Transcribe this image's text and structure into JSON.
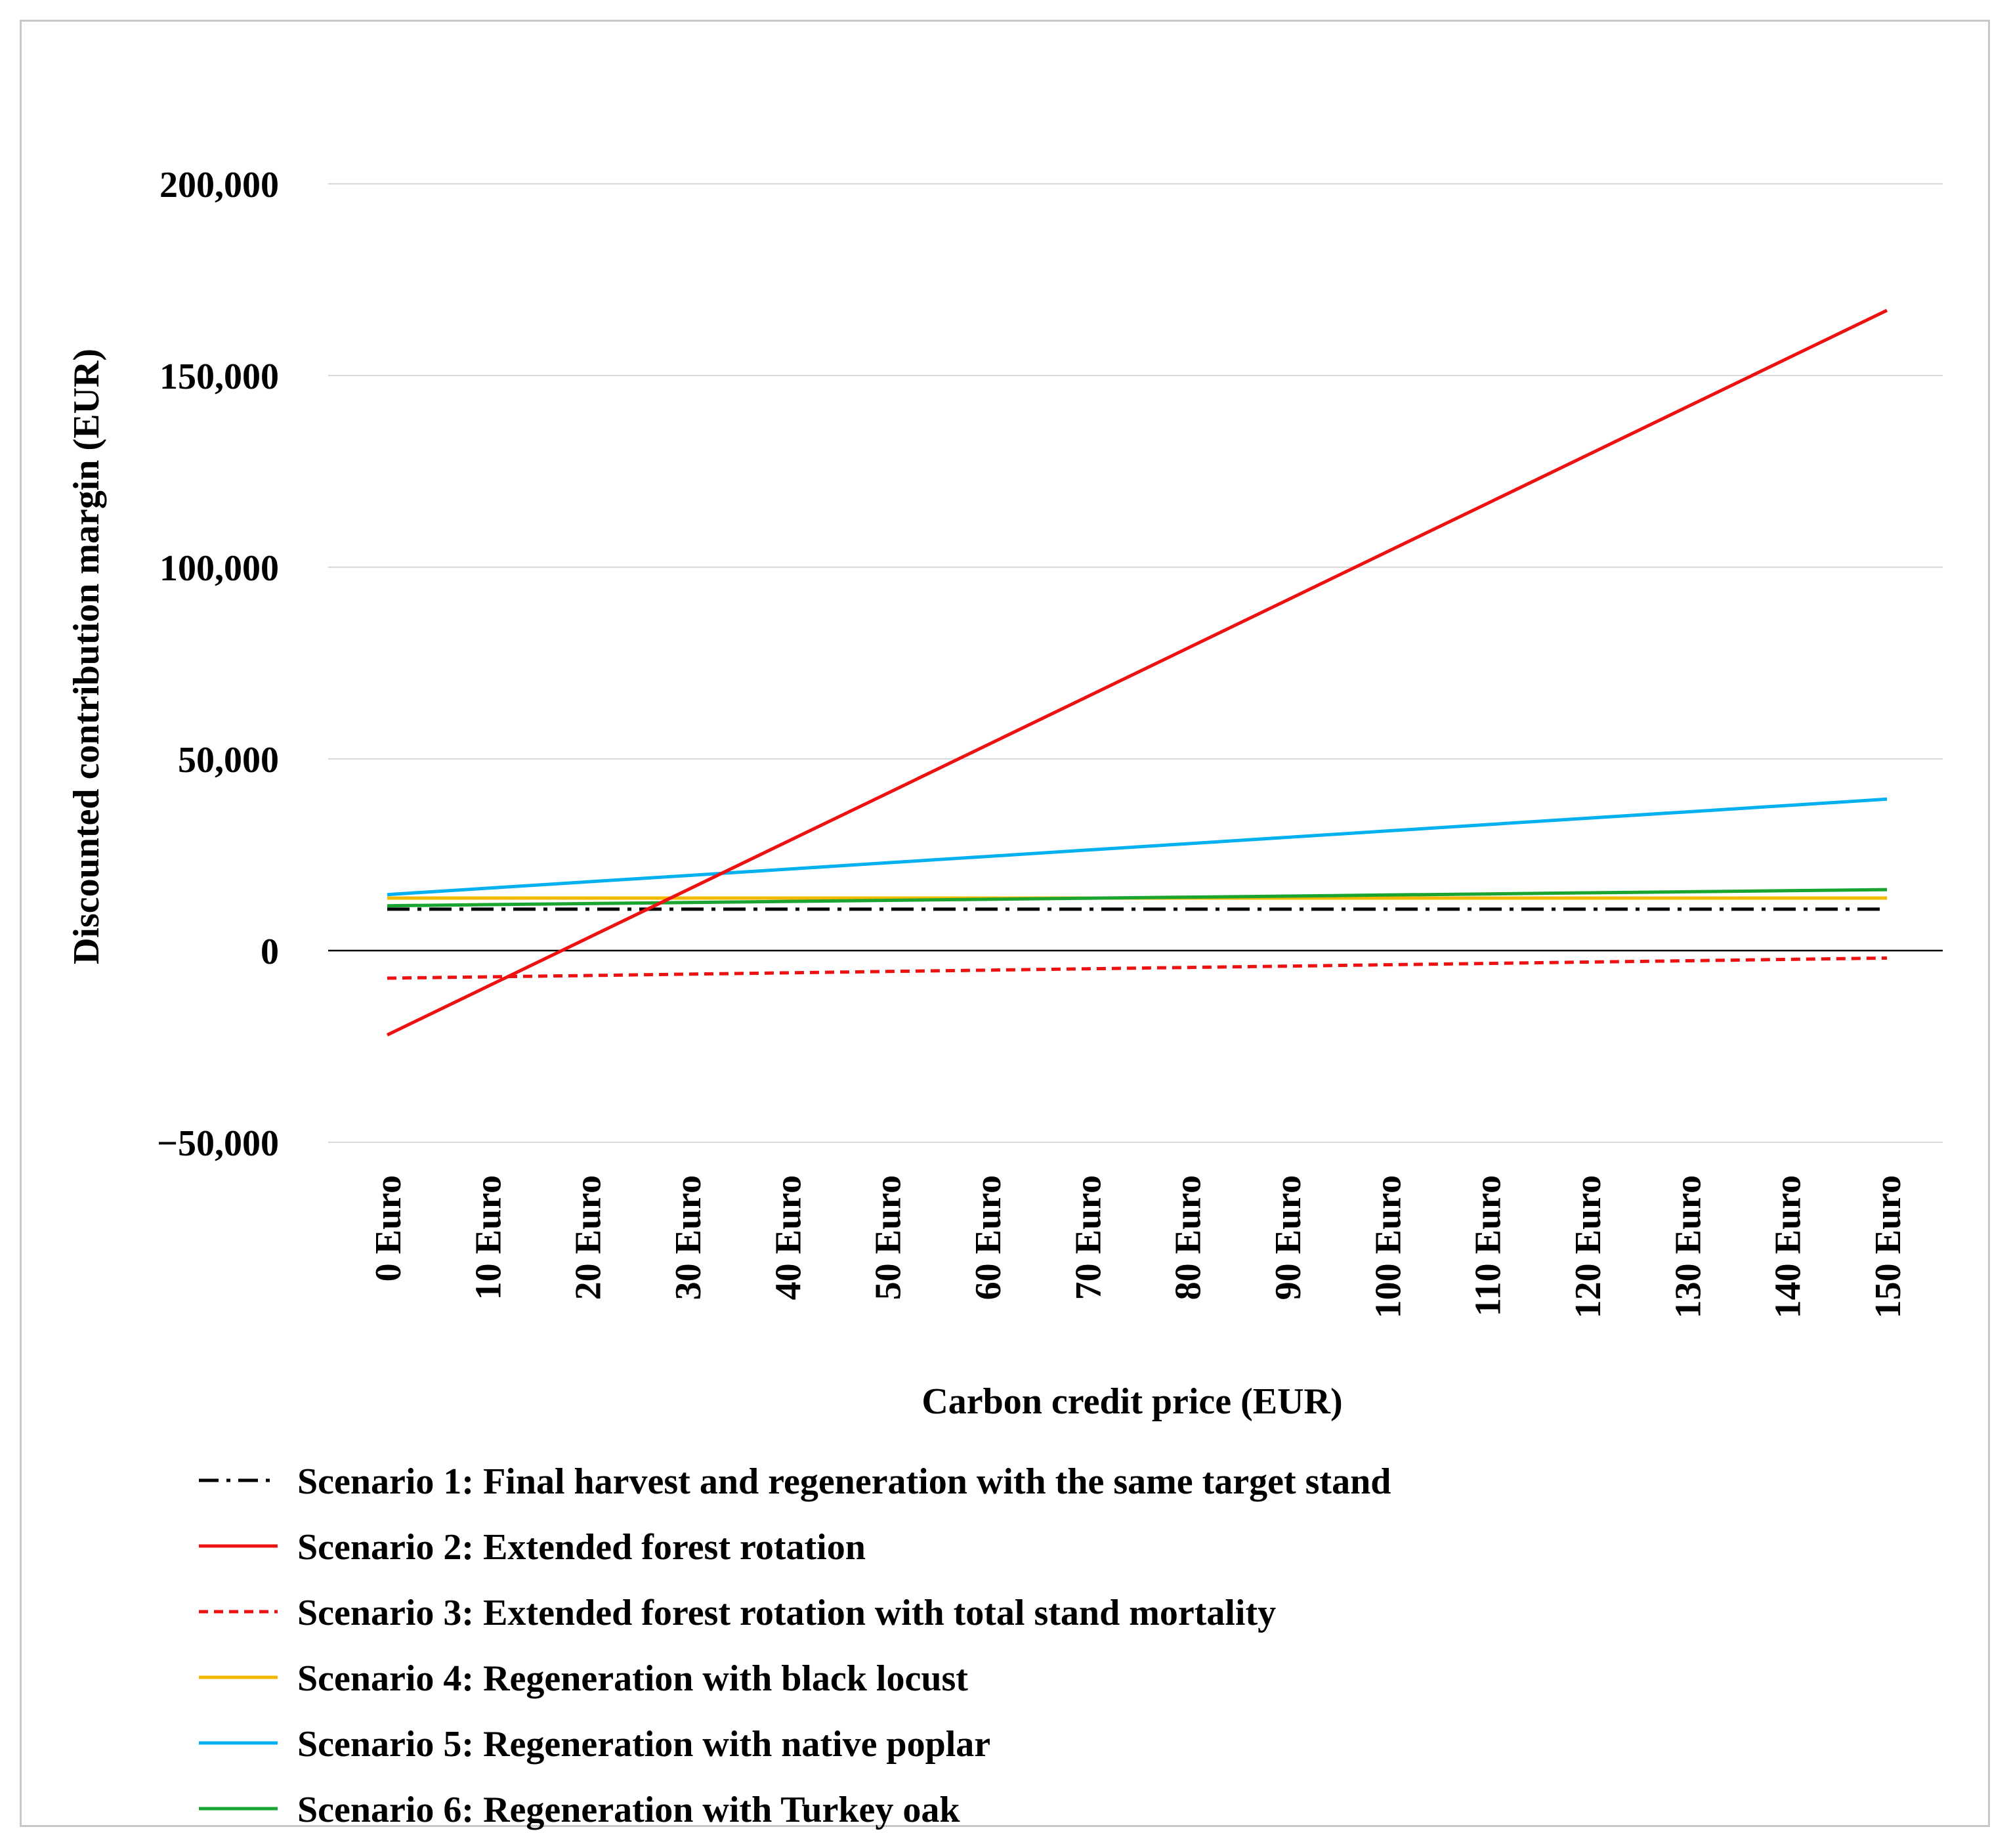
{
  "chart_data": {
    "type": "line",
    "title": "",
    "xlabel": "Carbon credit price (EUR)",
    "ylabel": "Discounted contribution margin (EUR)",
    "categories": [
      "0 Euro",
      "10 Euro",
      "20 Euro",
      "30 Euro",
      "40 Euro",
      "50 Euro",
      "60 Euro",
      "70 Euro",
      "80 Euro",
      "90 Euro",
      "100 Euro",
      "110 Euro",
      "120 Euro",
      "130 Euro",
      "140 Euro",
      "150 Euro"
    ],
    "x": [
      0,
      10,
      20,
      30,
      40,
      50,
      60,
      70,
      80,
      90,
      100,
      110,
      120,
      130,
      140,
      150
    ],
    "ylim": [
      -50000,
      200000
    ],
    "yticks": [
      -50000,
      0,
      50000,
      100000,
      150000,
      200000
    ],
    "ytick_labels": [
      "−50,000",
      "0",
      "50,000",
      "100,000",
      "150,000",
      "200,000"
    ],
    "grid": true,
    "legend_position": "bottom",
    "series": [
      {
        "name": "Scenario 1: Final harvest and regeneration with the same target stand",
        "color": "#000000",
        "style": "dashdot",
        "values": [
          10800,
          10800,
          10800,
          10800,
          10800,
          10800,
          10800,
          10800,
          10800,
          10800,
          10800,
          10800,
          10800,
          10800,
          10800,
          10800
        ]
      },
      {
        "name": "Scenario 2: Extended forest rotation",
        "color": "#ee1111",
        "style": "solid",
        "values": [
          -22000,
          -9400,
          3200,
          15800,
          28400,
          41000,
          53600,
          66200,
          78800,
          91400,
          104000,
          116600,
          129200,
          141800,
          154400,
          167000
        ]
      },
      {
        "name": "Scenario 3: Extended forest rotation with total stand mortality",
        "color": "#ee1111",
        "style": "dashed",
        "values": [
          -7200,
          -6850,
          -6500,
          -6150,
          -5800,
          -5450,
          -5100,
          -4750,
          -4400,
          -4050,
          -3700,
          -3350,
          -3000,
          -2650,
          -2300,
          -1950
        ]
      },
      {
        "name": "Scenario 4: Regeneration with black locust",
        "color": "#f2b800",
        "style": "solid",
        "values": [
          13700,
          13700,
          13700,
          13700,
          13700,
          13700,
          13700,
          13700,
          13700,
          13700,
          13700,
          13700,
          13700,
          13700,
          13700,
          13700
        ]
      },
      {
        "name": "Scenario 5: Regeneration with native poplar",
        "color": "#00b0f0",
        "style": "solid",
        "values": [
          14600,
          16260,
          17920,
          19580,
          21240,
          22900,
          24560,
          26220,
          27880,
          29540,
          31200,
          32860,
          34520,
          36180,
          37840,
          39500
        ]
      },
      {
        "name": "Scenario 6: Regeneration with Turkey oak",
        "color": "#1aa530",
        "style": "solid",
        "values": [
          11700,
          11980,
          12260,
          12540,
          12820,
          13100,
          13380,
          13660,
          13940,
          14220,
          14500,
          14780,
          15060,
          15340,
          15620,
          15900
        ]
      }
    ]
  }
}
